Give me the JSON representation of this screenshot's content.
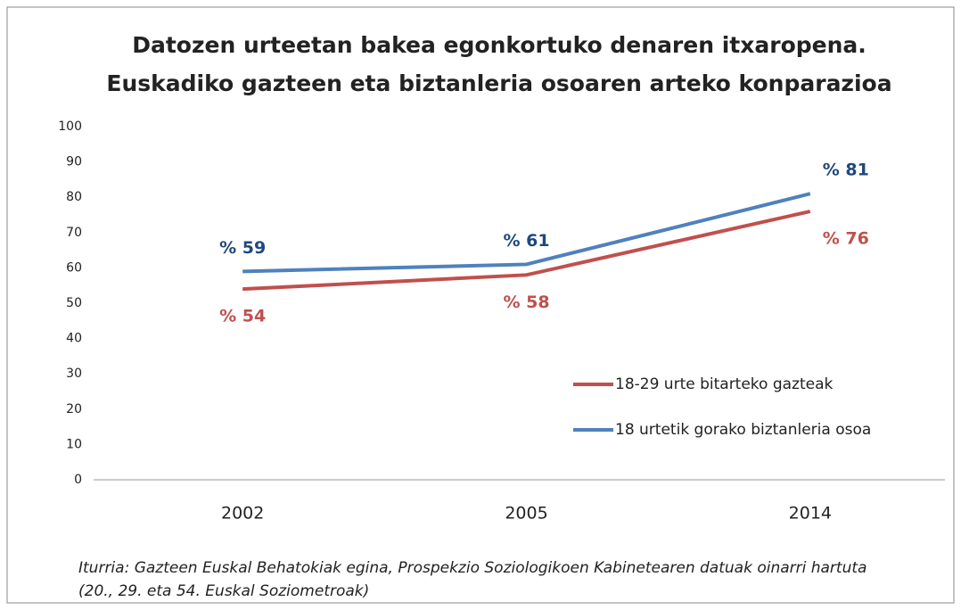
{
  "chart_data": {
    "type": "line",
    "title": [
      "Datozen urteetan bakea egonkortuko denaren itxaropena.",
      "Euskadiko gazteen eta biztanleria osoaren arteko konparazioa"
    ],
    "categories": [
      "2002",
      "2005",
      "2014"
    ],
    "series": [
      {
        "name": "18-29 urte bitarteko gazteak",
        "color": "#c0504d",
        "values": [
          54,
          58,
          76
        ],
        "value_labels": [
          "% 54",
          "% 58",
          "% 76"
        ]
      },
      {
        "name": "18 urtetik gorako biztanleria osoa",
        "color": "#4f81bd",
        "values": [
          59,
          61,
          81
        ],
        "value_labels": [
          "% 59",
          "% 61",
          "% 81"
        ]
      }
    ],
    "ylim": [
      0,
      100
    ],
    "yticks": [
      0,
      10,
      20,
      30,
      40,
      50,
      60,
      70,
      80,
      90,
      100
    ],
    "grid": false,
    "legend": "right",
    "source": [
      "Iturria: Gazteen Euskal Behatokiak egina, Prospekzio Soziologikoen Kabinetearen datuak oinarri hartuta",
      "(20., 29. eta 54. Euskal Soziometroak)"
    ]
  }
}
